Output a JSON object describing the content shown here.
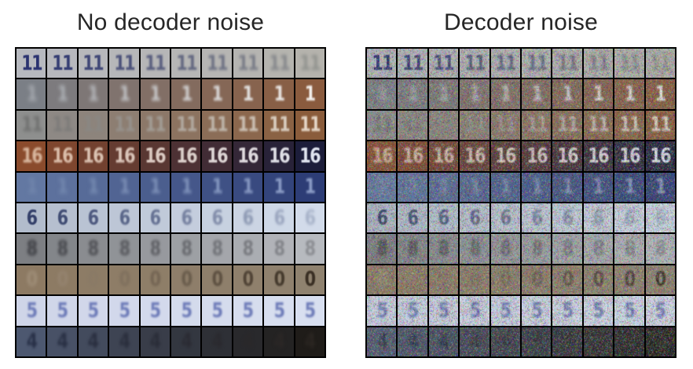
{
  "panels": [
    {
      "title": "No decoder noise",
      "noise": 0.0
    },
    {
      "title": "Decoder noise",
      "noise": 0.55
    }
  ],
  "rows": [
    {
      "digit": "11",
      "from_bg": "#b7b9bf",
      "to_bg": "#b5b3ad",
      "from_fg": "#2a3270",
      "to_fg": "#8f918d",
      "from_blur": 0.4,
      "to_blur": 2.2
    },
    {
      "digit": "1",
      "from_bg": "#7b7f86",
      "to_bg": "#8a5b3e",
      "from_fg": "#a9adb3",
      "to_fg": "#f4f1ee",
      "from_blur": 3.0,
      "to_blur": 1.0
    },
    {
      "digit": "11",
      "from_bg": "#8e8f8e",
      "to_bg": "#8a5c3b",
      "from_fg": "#6f706f",
      "to_fg": "#e5d7c8",
      "from_blur": 2.0,
      "to_blur": 1.0
    },
    {
      "digit": "16",
      "from_bg": "#8a4b2c",
      "to_bg": "#1c1d3a",
      "from_fg": "#d9b8a0",
      "to_fg": "#dfe3ee",
      "from_blur": 1.2,
      "to_blur": 0.6
    },
    {
      "digit": "1",
      "from_bg": "#6378a2",
      "to_bg": "#2d3d76",
      "from_fg": "#7287ad",
      "to_fg": "#8fa0c9",
      "from_blur": 3.0,
      "to_blur": 1.2
    },
    {
      "digit": "6",
      "from_bg": "#b2bccc",
      "to_bg": "#d2dbea",
      "from_fg": "#34406a",
      "to_fg": "#a7b2c8",
      "from_blur": 0.6,
      "to_blur": 1.8
    },
    {
      "digit": "8",
      "from_bg": "#7d7f83",
      "to_bg": "#b7babf",
      "from_fg": "#3c3d42",
      "to_fg": "#8c8e93",
      "from_blur": 2.2,
      "to_blur": 1.2
    },
    {
      "digit": "0",
      "from_bg": "#8d7a63",
      "to_bg": "#8f826f",
      "from_fg": "#a08f79",
      "to_fg": "#3a2f24",
      "from_blur": 2.4,
      "to_blur": 0.8
    },
    {
      "digit": "5",
      "from_bg": "#cfd5e8",
      "to_bg": "#d8dff0",
      "from_fg": "#6d7bb8",
      "to_fg": "#6d7bb8",
      "from_blur": 1.4,
      "to_blur": 1.4
    },
    {
      "digit": "4",
      "from_bg": "#4d5870",
      "to_bg": "#1f1c19",
      "from_fg": "#283047",
      "to_fg": "#2b2622",
      "from_blur": 1.8,
      "to_blur": 2.4
    }
  ]
}
